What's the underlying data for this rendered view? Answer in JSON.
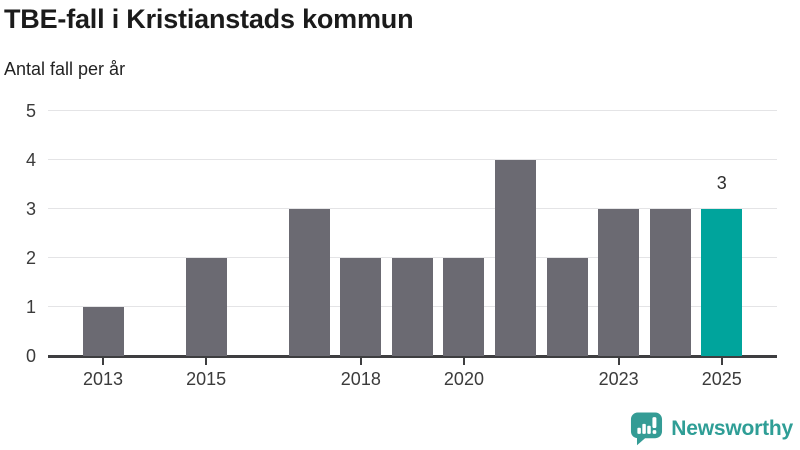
{
  "header": {
    "title": "TBE-fall i Kristianstads kommun",
    "subtitle": "Antal fall per år"
  },
  "chart_data": {
    "type": "bar",
    "title": "TBE-fall i Kristianstads kommun",
    "subtitle": "Antal fall per år",
    "ylabel": "Antal fall per år",
    "categories": [
      2013,
      2014,
      2015,
      2016,
      2017,
      2018,
      2019,
      2020,
      2021,
      2022,
      2023,
      2024,
      2025
    ],
    "values": [
      1,
      0,
      2,
      0,
      3,
      2,
      2,
      2,
      4,
      2,
      3,
      3,
      3
    ],
    "ylim": [
      0,
      5
    ],
    "yticks": [
      0,
      1,
      2,
      3,
      4,
      5
    ],
    "xticks": [
      2013,
      2015,
      2018,
      2020,
      2023,
      2025
    ],
    "grid": true,
    "legend": "none",
    "bar_color": "#6b6a72",
    "highlight_color": "#00a49c",
    "highlight_category": 2025,
    "highlight_value_label": "3"
  },
  "footer": {
    "brand": "Newsworthy",
    "brand_color": "#2f9e96",
    "logo_icon": "newsworthy-speech-bubble-bar-chart-icon"
  }
}
